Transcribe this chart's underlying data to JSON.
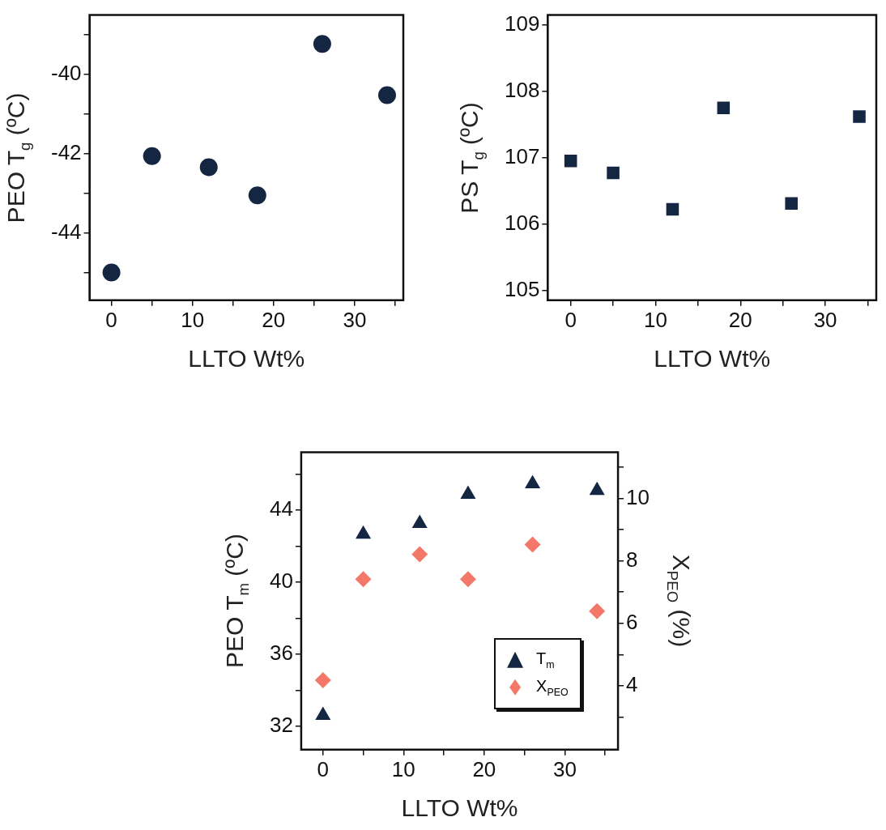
{
  "chart_data": [
    {
      "type": "scatter",
      "xlabel": "LLTO Wt%",
      "ylabel": "PEO T$_{g}$ (ºC)",
      "x": [
        0,
        5,
        12,
        18,
        26,
        34
      ],
      "marker": "circle",
      "series": [
        {
          "color": "#152642",
          "values": [
            -45.0,
            -42.06,
            -42.34,
            -43.05,
            -39.23,
            -40.52
          ]
        }
      ],
      "xlim": [
        -2.7,
        36
      ],
      "xticks": [
        0,
        {
          "value": 5,
          "label": null
        },
        10,
        {
          "value": 15,
          "label": null
        },
        20,
        {
          "value": 25,
          "label": null
        },
        30,
        {
          "value": 35,
          "label": null
        }
      ],
      "ylim": [
        -45.7,
        -38.5
      ],
      "yticks": [
        {
          "value": -45,
          "label": null
        },
        -44,
        {
          "value": -43,
          "label": null
        },
        -42,
        {
          "value": -41,
          "label": null
        },
        -40,
        {
          "value": -39,
          "label": null
        }
      ],
      "grid": false,
      "legend": false
    },
    {
      "type": "scatter",
      "xlabel": "LLTO Wt%",
      "ylabel": "PS T$_{g}$ (ºC)",
      "x": [
        0,
        5,
        12,
        18,
        26,
        34
      ],
      "marker": "square",
      "series": [
        {
          "color": "#152642",
          "values": [
            106.95,
            106.77,
            106.22,
            107.75,
            106.31,
            107.62
          ]
        }
      ],
      "xlim": [
        -2.7,
        36
      ],
      "xticks": [
        0,
        {
          "value": 5,
          "label": null
        },
        10,
        {
          "value": 15,
          "label": null
        },
        20,
        {
          "value": 25,
          "label": null
        },
        30,
        {
          "value": 35,
          "label": null
        }
      ],
      "ylim": [
        104.85,
        109.15
      ],
      "yticks": [
        105,
        106,
        107,
        108,
        109
      ],
      "grid": false,
      "legend": false
    },
    {
      "type": "scatter",
      "xlabel": "LLTO Wt%",
      "ylabel": "PEO T$_{m}$ (ºC)",
      "y2label": "X$_{PEO}$ (%)",
      "x": [
        0,
        5,
        12,
        18,
        26,
        34
      ],
      "series": [
        {
          "name": "T$_{m}$",
          "color": "#152642",
          "marker": "triangle",
          "values": [
            32.6,
            42.65,
            43.25,
            44.87,
            45.45,
            45.08
          ]
        },
        {
          "name": "X$_{PEO}$",
          "color": "#f4786a",
          "marker": "diamond",
          "axis": "y2",
          "values": [
            4.18,
            7.41,
            8.21,
            7.41,
            8.52,
            6.39
          ]
        }
      ],
      "xlim": [
        -2.7,
        36.6
      ],
      "xticks": [
        0,
        {
          "value": 5,
          "label": null
        },
        10,
        {
          "value": 15,
          "label": null
        },
        20,
        {
          "value": 25,
          "label": null
        },
        30,
        {
          "value": 35,
          "label": null
        }
      ],
      "ylim": [
        30.7,
        47.2
      ],
      "yticks": [
        32,
        {
          "value": 34,
          "label": null
        },
        36,
        {
          "value": 38,
          "label": null
        },
        40,
        {
          "value": 42,
          "label": null
        },
        44,
        {
          "value": 46,
          "label": null
        }
      ],
      "y2lim": [
        1.96,
        11.47
      ],
      "y2ticks": [
        {
          "value": 3,
          "label": null
        },
        4,
        {
          "value": 5,
          "label": null
        },
        6,
        {
          "value": 7,
          "label": null
        },
        8,
        {
          "value": 9,
          "label": null
        },
        10,
        {
          "value": 11,
          "label": null
        }
      ],
      "grid": false,
      "legend": "bottom right"
    }
  ]
}
